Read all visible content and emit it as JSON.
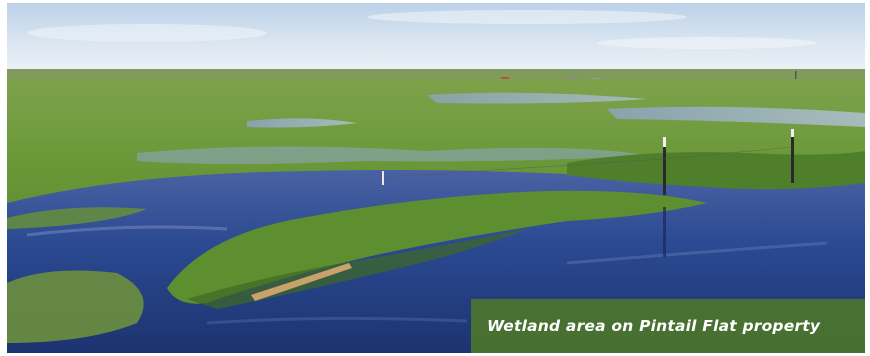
{
  "caption": {
    "text": "Wetland area on Pintail Flat property"
  },
  "colors": {
    "sky_top": "#c9dbee",
    "sky_horizon": "#eef3f7",
    "grass": "#6e9a3c",
    "grass_dark": "#3f6a22",
    "water": "#243f86",
    "water_light": "#6c83b8",
    "caption_bg": "#4a742c",
    "caption_text": "#ffffff"
  }
}
